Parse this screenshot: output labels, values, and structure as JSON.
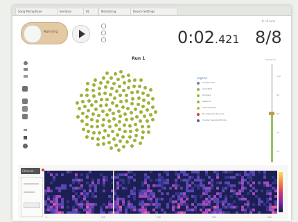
{
  "browser": {
    "tabs": [
      "Song Microphone",
      "Serialize",
      "BL",
      "Monitoring",
      "Device Settings"
    ]
  },
  "controls": {
    "run_toggle_label": "Running",
    "play_icon": "play-icon"
  },
  "timer": {
    "seconds": "0:02",
    "milliseconds": ".421"
  },
  "counter": {
    "caption": "8 / 8 runs",
    "value": "8/8"
  },
  "plot": {
    "title": "Run 1",
    "legend_title": "Legend",
    "legend": [
      {
        "label": "Sample Site",
        "color": "#5f86b5"
      },
      {
        "label": "Identified",
        "color": "#9bb33a"
      },
      {
        "label": "Ambient",
        "color": "#9bb33a"
      },
      {
        "label": "Reserve",
        "color": "#9bb33a"
      },
      {
        "label": "Idle Detected",
        "color": "#c9b23a"
      },
      {
        "label": "No Detected Sources",
        "color": "#c84a3a"
      },
      {
        "label": "Cluster Selected Points",
        "color": "#6a5a8a"
      }
    ],
    "dot_color": "#9bb33a"
  },
  "slider": {
    "caption": "Threshold",
    "ticks": [
      "20",
      "40",
      "60",
      "80",
      "100"
    ],
    "level": 0.5,
    "fill_color": "#9bbf63"
  },
  "spectrogram": {
    "select_label": "Channel",
    "x_ticks": [
      "0",
      "100",
      "200",
      "300",
      "400"
    ]
  }
}
